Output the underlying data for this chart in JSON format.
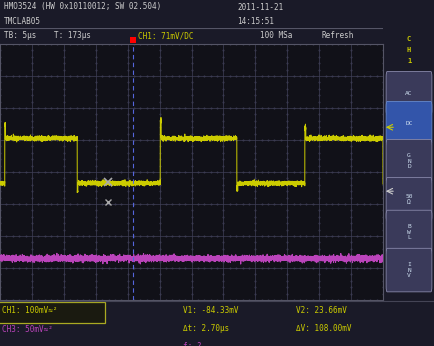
{
  "header_text": "HMO3524 (HW 0x10110012; SW 02.504)",
  "header_date": "2011-11-21",
  "header_model": "TMCLAB05",
  "header_time": "14:15:51",
  "tb_label": "TB: 5μs",
  "t_label": "T: 173μs",
  "ch1_label_top": "CH1: 71mV/DC",
  "msa_label": "100 MSa",
  "refresh_label": "Refresh",
  "ch1_color": "#cccc00",
  "ch3_color": "#bb44bb",
  "trigger_color": "#5555cc",
  "footer_ch1": "CH1: 100mV≈²",
  "footer_ch3": "CH3: 50mV≈²",
  "footer_v1": "V1: -84.33mV",
  "footer_v2": "V2: 23.66mV",
  "footer_dt": "Δt: 2.70μs",
  "footer_dv": "ΔV: 108.00mV",
  "footer_f": "f: ?",
  "n_cols": 12,
  "n_rows": 8,
  "figsize": [
    4.35,
    3.46
  ],
  "dpi": 100,
  "screen_bg": "#111118",
  "overall_bg": "#1a1a28",
  "header_bg": "#1a1a28",
  "grid_color": "#404058",
  "right_bg": "#2a2a3a",
  "footer_bg": "#1a1a28"
}
